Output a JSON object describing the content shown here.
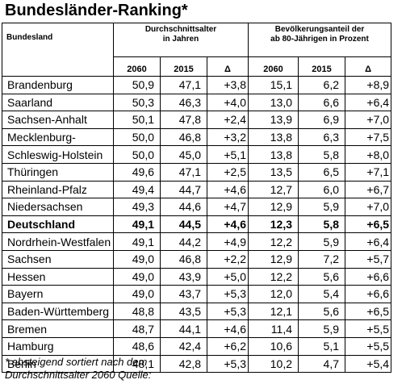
{
  "title": "Bundesländer-Ranking*",
  "header": {
    "col_state": "Bundesland",
    "group_age_l1": "Durchschnittsalter",
    "group_age_l2": "in Jahren",
    "group_pop_l1": "Bevölkerungsanteil der",
    "group_pop_l2": "ab 80-Jährigen in Prozent",
    "y2060": "2060",
    "y2015": "2015",
    "delta": "Δ"
  },
  "rows": [
    {
      "name": "Brandenburg",
      "a2060": "50,9",
      "a2015": "47,1",
      "ad": "+3,8",
      "p2060": "15,1",
      "p2015": "6,2",
      "pd": "+8,9"
    },
    {
      "name": "Saarland",
      "a2060": "50,3",
      "a2015": "46,3",
      "ad": "+4,0",
      "p2060": "13,0",
      "p2015": "6,6",
      "pd": "+6,4"
    },
    {
      "name": "Sachsen-Anhalt",
      "a2060": "50,1",
      "a2015": "47,8",
      "ad": "+2,4",
      "p2060": "13,9",
      "p2015": "6,9",
      "pd": "+7,0"
    },
    {
      "name": "Mecklenburg-",
      "a2060": "50,0",
      "a2015": "46,8",
      "ad": "+3,2",
      "p2060": "13,8",
      "p2015": "6,3",
      "pd": "+7,5"
    },
    {
      "name": "Schleswig-Holstein",
      "a2060": "50,0",
      "a2015": "45,0",
      "ad": "+5,1",
      "p2060": "13,8",
      "p2015": "5,8",
      "pd": "+8,0"
    },
    {
      "name": "Thüringen",
      "a2060": "49,6",
      "a2015": "47,1",
      "ad": "+2,5",
      "p2060": "13,5",
      "p2015": "6,5",
      "pd": "+7,1"
    },
    {
      "name": "Rheinland-Pfalz",
      "a2060": "49,4",
      "a2015": "44,7",
      "ad": "+4,6",
      "p2060": "12,7",
      "p2015": "6,0",
      "pd": "+6,7"
    },
    {
      "name": "Niedersachsen",
      "a2060": "49,3",
      "a2015": "44,6",
      "ad": "+4,7",
      "p2060": "12,9",
      "p2015": "5,9",
      "pd": "+7,0"
    },
    {
      "name": "Deutschland",
      "a2060": "49,1",
      "a2015": "44,5",
      "ad": "+4,6",
      "p2060": "12,3",
      "p2015": "5,8",
      "pd": "+6,5",
      "bold": true
    },
    {
      "name": "Nordrhein-Westfalen",
      "a2060": "49,1",
      "a2015": "44,2",
      "ad": "+4,9",
      "p2060": "12,2",
      "p2015": "5,9",
      "pd": "+6,4"
    },
    {
      "name": "Sachsen",
      "a2060": "49,0",
      "a2015": "46,8",
      "ad": "+2,2",
      "p2060": "12,9",
      "p2015": "7,2",
      "pd": "+5,7"
    },
    {
      "name": "Hessen",
      "a2060": "49,0",
      "a2015": "43,9",
      "ad": "+5,0",
      "p2060": "12,2",
      "p2015": "5,6",
      "pd": "+6,6"
    },
    {
      "name": "Bayern",
      "a2060": "49,0",
      "a2015": "43,7",
      "ad": "+5,3",
      "p2060": "12,0",
      "p2015": "5,4",
      "pd": "+6,6"
    },
    {
      "name": "Baden-Württemberg",
      "a2060": "48,8",
      "a2015": "43,5",
      "ad": "+5,3",
      "p2060": "12,1",
      "p2015": "5,6",
      "pd": "+6,5"
    },
    {
      "name": "Bremen",
      "a2060": "48,7",
      "a2015": "44,1",
      "ad": "+4,6",
      "p2060": "11,4",
      "p2015": "5,9",
      "pd": "+5,5"
    },
    {
      "name": "Hamburg",
      "a2060": "48,6",
      "a2015": "42,4",
      "ad": "+6,2",
      "p2060": "10,6",
      "p2015": "5,1",
      "pd": "+5,5"
    },
    {
      "name": "Berlin",
      "a2060": "48,1",
      "a2015": "42,8",
      "ad": "+5,3",
      "p2060": "10,2",
      "p2015": "4,7",
      "pd": "+5,4"
    }
  ],
  "footnote": {
    "line1": "* absteigend sortiert nach dem",
    "line2": "Durchschnittsalter 2060 Quelle:"
  }
}
